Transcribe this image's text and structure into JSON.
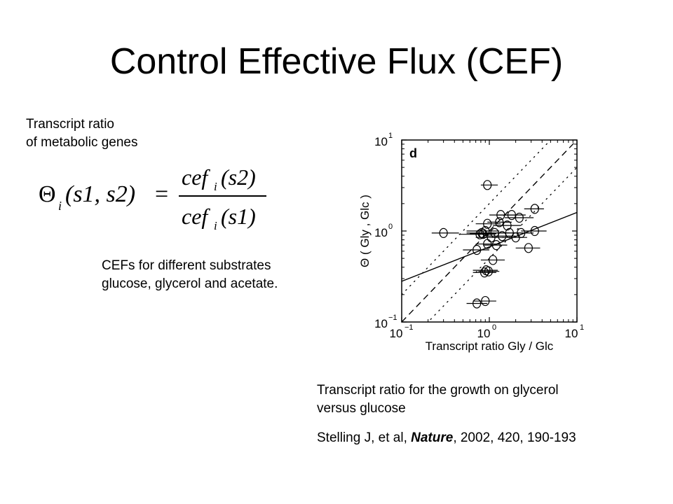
{
  "slide": {
    "title": "Control Effective Flux (CEF)",
    "eq_caption": [
      "Transcript ratio",
      "of metabolic genes"
    ],
    "equation": {
      "lhs_symbol": "Θ",
      "lhs_sub": "i",
      "lhs_args": "(s1, s2)",
      "equals": "=",
      "num_func": "cef",
      "num_sub": "i",
      "num_arg": "(s2)",
      "den_func": "cef",
      "den_sub": "i",
      "den_arg": "(s1)"
    },
    "cef_caption": [
      "CEFs for different substrates",
      "glucose, glycerol and acetate."
    ],
    "plot_caption": [
      "Transcript ratio for the growth on glycerol",
      "versus glucose"
    ],
    "citation": {
      "authors": "Stelling J, et al, ",
      "journal": "Nature",
      "rest": ", 2002, 420, 190-193"
    }
  },
  "chart_data": {
    "type": "scatter",
    "panel_label": "d",
    "xlabel": "Transcript ratio Gly / Glc",
    "ylabel": "Θ ( Gly , Glc )",
    "xscale": "log",
    "yscale": "log",
    "xlim": [
      0.1,
      10
    ],
    "ylim": [
      0.1,
      10
    ],
    "xticks": [
      {
        "base": "10",
        "exp": "−1"
      },
      {
        "base": "10",
        "exp": "0"
      },
      {
        "base": "10",
        "exp": "1"
      }
    ],
    "yticks": [
      {
        "base": "10",
        "exp": "−1"
      },
      {
        "base": "10",
        "exp": "0"
      },
      {
        "base": "10",
        "exp": "1"
      }
    ],
    "grid": false,
    "reference_lines": {
      "identity": "dashed",
      "bounds": "dotted",
      "bound_factor": 2,
      "fit": "solid",
      "fit_points": [
        [
          0.1,
          0.28
        ],
        [
          10,
          1.6
        ]
      ]
    },
    "points": [
      {
        "x": 0.95,
        "y": 3.2,
        "xerr_low": 0.8,
        "xerr_high": 1.25
      },
      {
        "x": 3.3,
        "y": 1.75,
        "xerr_low": 2.5,
        "xerr_high": 4.2
      },
      {
        "x": 1.35,
        "y": 1.5,
        "xerr_low": 1.0,
        "xerr_high": 2.0
      },
      {
        "x": 1.8,
        "y": 1.5,
        "xerr_low": 1.2,
        "xerr_high": 2.6
      },
      {
        "x": 2.2,
        "y": 1.4,
        "xerr_low": 1.5,
        "xerr_high": 3.2
      },
      {
        "x": 0.95,
        "y": 1.2,
        "xerr_low": 0.7,
        "xerr_high": 1.35
      },
      {
        "x": 1.3,
        "y": 1.25,
        "xerr_low": 0.95,
        "xerr_high": 1.8
      },
      {
        "x": 1.6,
        "y": 1.15,
        "xerr_low": 1.1,
        "xerr_high": 2.3
      },
      {
        "x": 0.9,
        "y": 1.0,
        "xerr_low": 0.55,
        "xerr_high": 1.3
      },
      {
        "x": 0.82,
        "y": 0.95,
        "xerr_low": 0.55,
        "xerr_high": 1.15
      },
      {
        "x": 0.78,
        "y": 0.92,
        "xerr_low": 0.45,
        "xerr_high": 1.1
      },
      {
        "x": 0.85,
        "y": 0.93,
        "xerr_low": 0.6,
        "xerr_high": 1.2
      },
      {
        "x": 1.15,
        "y": 0.95,
        "xerr_low": 0.8,
        "xerr_high": 1.7
      },
      {
        "x": 1.7,
        "y": 0.95,
        "xerr_low": 1.2,
        "xerr_high": 2.4
      },
      {
        "x": 2.3,
        "y": 0.95,
        "xerr_low": 1.5,
        "xerr_high": 3.2
      },
      {
        "x": 3.3,
        "y": 1.0,
        "xerr_low": 2.3,
        "xerr_high": 4.5
      },
      {
        "x": 0.3,
        "y": 0.95,
        "xerr_low": 0.22,
        "xerr_high": 0.45
      },
      {
        "x": 1.05,
        "y": 0.85,
        "xerr_low": 0.7,
        "xerr_high": 1.5
      },
      {
        "x": 1.4,
        "y": 0.88,
        "xerr_low": 0.95,
        "xerr_high": 2.0
      },
      {
        "x": 2.0,
        "y": 0.85,
        "xerr_low": 1.4,
        "xerr_high": 2.7
      },
      {
        "x": 0.95,
        "y": 0.72,
        "xerr_low": 0.7,
        "xerr_high": 1.3
      },
      {
        "x": 1.2,
        "y": 0.7,
        "xerr_low": 0.85,
        "xerr_high": 1.6
      },
      {
        "x": 2.8,
        "y": 0.65,
        "xerr_low": 2.0,
        "xerr_high": 3.8
      },
      {
        "x": 0.72,
        "y": 0.62,
        "xerr_low": 0.5,
        "xerr_high": 1.0
      },
      {
        "x": 1.1,
        "y": 0.48,
        "xerr_low": 0.8,
        "xerr_high": 1.5
      },
      {
        "x": 0.92,
        "y": 0.37,
        "xerr_low": 0.65,
        "xerr_high": 1.25
      },
      {
        "x": 0.98,
        "y": 0.36,
        "xerr_low": 0.75,
        "xerr_high": 1.3
      },
      {
        "x": 0.88,
        "y": 0.35,
        "xerr_low": 0.65,
        "xerr_high": 1.2
      },
      {
        "x": 0.72,
        "y": 0.16,
        "xerr_low": 0.55,
        "xerr_high": 0.95
      },
      {
        "x": 0.9,
        "y": 0.17,
        "xerr_low": 0.65,
        "xerr_high": 1.2
      }
    ]
  }
}
